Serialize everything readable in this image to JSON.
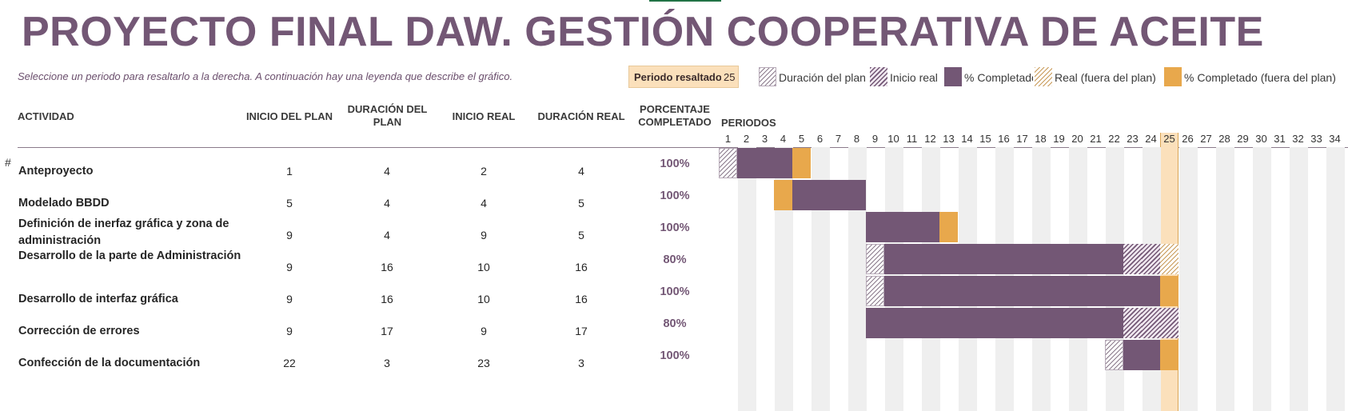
{
  "title": "PROYECTO FINAL DAW. GESTIÓN COOPERATIVA DE ACEITE",
  "subtitle": "Seleccione un periodo para resaltarlo a la derecha.  A continuación hay una leyenda que describe el gráfico.",
  "highlight": {
    "label": "Periodo resaltado",
    "value": "25"
  },
  "legend": [
    {
      "label": "Duración del plan",
      "style": "hatch-grey"
    },
    {
      "label": "Inicio real",
      "style": "hatch-purple"
    },
    {
      "label": "% Completado",
      "style": "solid-purple"
    },
    {
      "label": "Real (fuera del plan)",
      "style": "hatch-orange"
    },
    {
      "label": "% Completado (fuera del plan)",
      "style": "solid-orange"
    }
  ],
  "headers": {
    "activity": "ACTIVIDAD",
    "plan_start": "INICIO DEL PLAN",
    "plan_duration": "DURACIÓN DEL PLAN",
    "real_start": "INICIO REAL",
    "real_duration": "DURACIÓN REAL",
    "percent": "PORCENTAJE COMPLETADO",
    "periods": "PERIODOS"
  },
  "row_marker": "#",
  "periods": [
    "1",
    "2",
    "3",
    "4",
    "5",
    "6",
    "7",
    "8",
    "9",
    "10",
    "11",
    "12",
    "13",
    "14",
    "15",
    "16",
    "17",
    "18",
    "19",
    "20",
    "21",
    "22",
    "23",
    "24",
    "25",
    "26",
    "27",
    "28",
    "29",
    "30",
    "31",
    "32",
    "33",
    "34"
  ],
  "highlight_period": 25,
  "tasks": [
    {
      "name": "Anteproyecto",
      "plan_start": 1,
      "plan_duration": 4,
      "real_start": 2,
      "real_duration": 4,
      "percent": "100%",
      "pct_value": 100
    },
    {
      "name": "Modelado BBDD",
      "plan_start": 5,
      "plan_duration": 4,
      "real_start": 4,
      "real_duration": 5,
      "percent": "100%",
      "pct_value": 100
    },
    {
      "name": "Definición de inerfaz gráfica y zona de administración",
      "plan_start": 9,
      "plan_duration": 4,
      "real_start": 9,
      "real_duration": 5,
      "percent": "100%",
      "pct_value": 100
    },
    {
      "name": "Desarrollo de la parte de Administración",
      "plan_start": 9,
      "plan_duration": 16,
      "real_start": 10,
      "real_duration": 16,
      "percent": "80%",
      "pct_value": 80
    },
    {
      "name": "Desarrollo de interfaz gráfica",
      "plan_start": 9,
      "plan_duration": 16,
      "real_start": 10,
      "real_duration": 16,
      "percent": "100%",
      "pct_value": 100
    },
    {
      "name": "Corrección de errores",
      "plan_start": 9,
      "plan_duration": 17,
      "real_start": 9,
      "real_duration": 17,
      "percent": "80%",
      "pct_value": 80
    },
    {
      "name": "Confección de la documentación",
      "plan_start": 22,
      "plan_duration": 3,
      "real_start": 23,
      "real_duration": 3,
      "percent": "100%",
      "pct_value": 100
    }
  ],
  "colors": {
    "purple": "#735775",
    "orange": "#e8a84c",
    "highlight": "#fbe0bb"
  }
}
